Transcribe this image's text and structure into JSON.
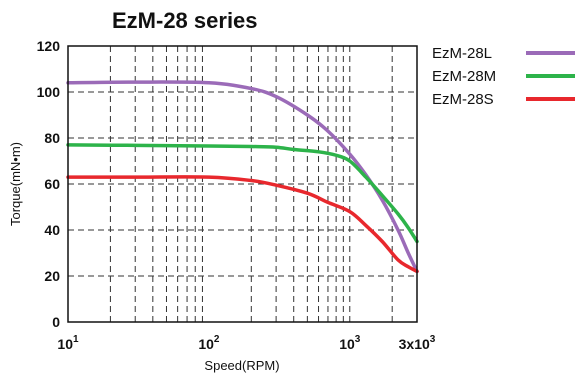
{
  "chart_data": {
    "type": "line",
    "title": "EzM-28 series",
    "xlabel": "Speed(RPM)",
    "ylabel": "Torque(mN•m)",
    "x_scale": "log",
    "xlim": [
      10,
      3000
    ],
    "ylim": [
      0,
      120
    ],
    "y_ticks": [
      0,
      20,
      40,
      60,
      80,
      100,
      120
    ],
    "x_ticks": [
      {
        "value": 10,
        "base": "10",
        "exp": "1"
      },
      {
        "value": 100,
        "base": "10",
        "exp": "2"
      },
      {
        "value": 1000,
        "base": "10",
        "exp": "3"
      },
      {
        "value": 3000,
        "base": "3x10",
        "exp": "3"
      }
    ],
    "grid": true,
    "legend_position": "right-top, outside",
    "series": [
      {
        "name": "EzM-28L",
        "color": "#9B6BB8",
        "points": [
          [
            10,
            104
          ],
          [
            30,
            104.3
          ],
          [
            100,
            104
          ],
          [
            200,
            101.5
          ],
          [
            300,
            98
          ],
          [
            500,
            90
          ],
          [
            700,
            83
          ],
          [
            1000,
            73
          ],
          [
            1300,
            64
          ],
          [
            1700,
            53
          ],
          [
            2200,
            40
          ],
          [
            2600,
            30
          ],
          [
            3000,
            22
          ]
        ]
      },
      {
        "name": "EzM-28M",
        "color": "#2DB34A",
        "points": [
          [
            10,
            77
          ],
          [
            30,
            76.8
          ],
          [
            100,
            76.5
          ],
          [
            200,
            76.3
          ],
          [
            300,
            76
          ],
          [
            400,
            75
          ],
          [
            600,
            74
          ],
          [
            800,
            72.5
          ],
          [
            1000,
            70
          ],
          [
            1300,
            63
          ],
          [
            1700,
            55
          ],
          [
            2200,
            47
          ],
          [
            2600,
            41
          ],
          [
            3000,
            35
          ]
        ]
      },
      {
        "name": "EzM-28S",
        "color": "#E8282D",
        "points": [
          [
            10,
            63
          ],
          [
            30,
            63
          ],
          [
            100,
            63
          ],
          [
            200,
            61.5
          ],
          [
            300,
            59.5
          ],
          [
            500,
            56
          ],
          [
            700,
            52
          ],
          [
            1000,
            48
          ],
          [
            1300,
            42
          ],
          [
            1700,
            35
          ],
          [
            2200,
            27
          ],
          [
            2600,
            24
          ],
          [
            3000,
            22
          ]
        ]
      }
    ]
  }
}
